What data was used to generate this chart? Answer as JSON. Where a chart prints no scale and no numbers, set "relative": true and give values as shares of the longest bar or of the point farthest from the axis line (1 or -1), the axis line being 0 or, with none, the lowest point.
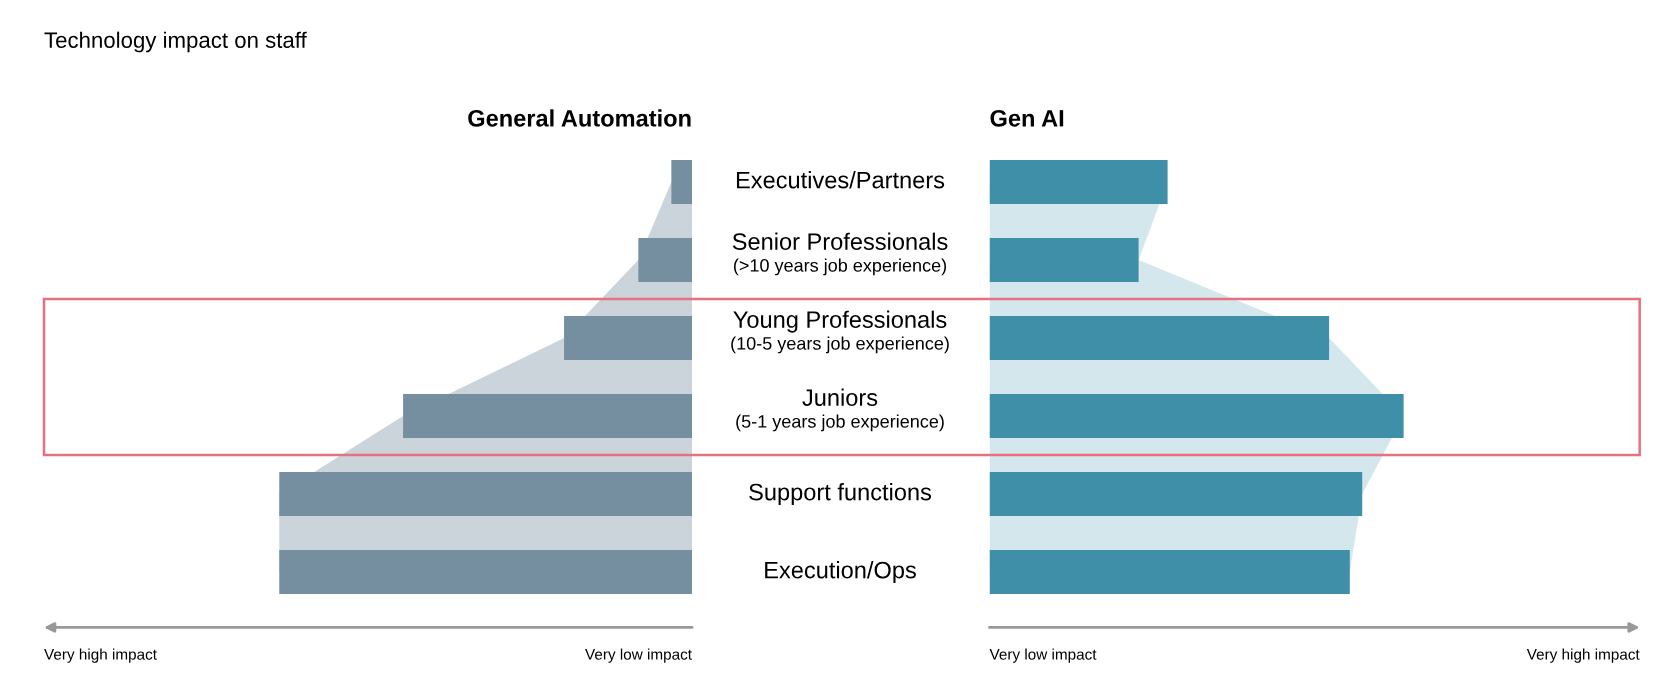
{
  "chart_data": [
    {
      "type": "bar",
      "orientation": "horizontal",
      "relative": true,
      "title": "General Automation",
      "categories": [
        "Executives/Partners",
        "Senior Professionals\n(>10 years job experience)",
        "Young Professionals\n(10-5 years job experience)",
        "Juniors\n(5-1 years job experience)",
        "Support functions",
        "Execution/Ops"
      ],
      "series": [
        {
          "color": "#768fa0",
          "values": [
            0.05,
            0.13,
            0.31,
            0.7,
            1,
            1
          ]
        },
        {
          "type": "area",
          "color": "#cbd4db",
          "values": [
            0.05,
            0.13,
            0.31,
            0.7,
            1,
            1
          ]
        }
      ],
      "annotations": [
        "Technology impact on staff",
        "Very high impact",
        "Very low impact"
      ]
    },
    {
      "type": "bar",
      "orientation": "horizontal",
      "relative": true,
      "title": "Gen AI",
      "categories": [
        null,
        null,
        null,
        null,
        null,
        null
      ],
      "series": [
        {
          "color": "#3f8fa8",
          "values": [
            0.43,
            0.36,
            0.82,
            1,
            0.9,
            0.87
          ]
        },
        {
          "type": "area",
          "color": "#d3e7ed",
          "values": [
            0.43,
            0.36,
            0.82,
            1,
            0.9,
            0.87
          ]
        }
      ],
      "annotations": [
        "Very low impact",
        "Very high impact"
      ]
    }
  ]
}
